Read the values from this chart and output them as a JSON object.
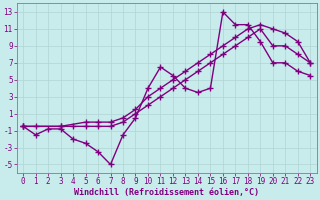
{
  "xlabel": "Windchill (Refroidissement éolien,°C)",
  "bg_color": "#c8ecec",
  "line_color": "#800080",
  "grid_color": "#aacccc",
  "xlim": [
    -0.5,
    23.5
  ],
  "ylim": [
    -6,
    14
  ],
  "xticks": [
    0,
    1,
    2,
    3,
    4,
    5,
    6,
    7,
    8,
    9,
    10,
    11,
    12,
    13,
    14,
    15,
    16,
    17,
    18,
    19,
    20,
    21,
    22,
    23
  ],
  "yticks": [
    -5,
    -3,
    -1,
    1,
    3,
    5,
    7,
    9,
    11,
    13
  ],
  "line1_x": [
    0,
    1,
    2,
    3,
    4,
    5,
    6,
    7,
    8,
    9,
    10,
    11,
    12,
    13,
    14,
    15,
    16,
    17,
    18,
    19,
    20,
    21,
    22,
    23
  ],
  "line1_y": [
    -0.5,
    -1.5,
    -0.8,
    -0.8,
    -2,
    -2.5,
    -3.5,
    -5,
    -1.5,
    0.5,
    4,
    6.5,
    5.5,
    4,
    3.5,
    4,
    13,
    11.5,
    11.5,
    9.5,
    7,
    7,
    6,
    5.5
  ],
  "line2_x": [
    0,
    1,
    3,
    4,
    5,
    6,
    7,
    8,
    9,
    10,
    11,
    12,
    13,
    14,
    15,
    16,
    17,
    18,
    19,
    20,
    21,
    22,
    23
  ],
  "line2_y": [
    -0.5,
    -0.5,
    -0.5,
    -0.5,
    -0.5,
    -0.5,
    -0.5,
    0,
    1,
    2,
    3,
    4,
    5,
    6,
    7,
    8,
    9,
    10,
    11,
    9,
    9,
    8,
    7
  ],
  "line3_x": [
    0,
    3,
    5,
    6,
    7,
    8,
    9,
    10,
    11,
    12,
    13,
    14,
    15,
    16,
    17,
    18,
    19,
    20,
    21,
    22,
    23
  ],
  "line3_y": [
    -0.5,
    -0.5,
    0,
    0,
    0,
    0.5,
    1.5,
    3,
    4,
    5,
    6,
    7,
    8,
    9,
    10,
    11,
    11.5,
    11,
    10.5,
    9.5,
    7
  ],
  "marker": "+",
  "markersize": 4,
  "linewidth": 1.0,
  "tick_fontsize": 5.5,
  "xlabel_fontsize": 6.0
}
